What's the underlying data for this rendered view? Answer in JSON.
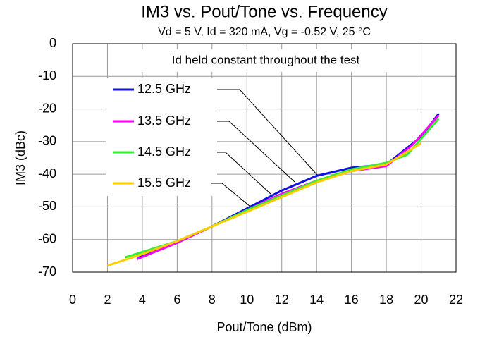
{
  "chart_data": {
    "type": "line",
    "title": "IM3 vs. Pout/Tone vs. Frequency",
    "subtitle": "Vd = 5 V, Id = 320 mA, Vg = -0.52 V, 25 °C",
    "annotation": "Id held constant throughout the test",
    "x_label": "Pout/Tone (dBm)",
    "y_label": "IM3 (dBc)",
    "xlim": [
      0,
      22
    ],
    "xticks": [
      0,
      2,
      4,
      6,
      8,
      10,
      12,
      14,
      16,
      18,
      20,
      22
    ],
    "ylim": [
      -70,
      0
    ],
    "yticks": [
      -70,
      -60,
      -50,
      -40,
      -30,
      -20,
      -10,
      0
    ],
    "grid": true,
    "series": [
      {
        "name": "12.5 GHz",
        "color": "#1010e0",
        "x": [
          3.7,
          6,
          8,
          10,
          12,
          14,
          16,
          18,
          20,
          21
        ],
        "values": [
          -65.5,
          -61,
          -56,
          -50.5,
          -45,
          -40.5,
          -38,
          -37,
          -28.5,
          -21.5
        ]
      },
      {
        "name": "13.5 GHz",
        "color": "#ff00ff",
        "x": [
          3.7,
          6,
          8,
          10,
          12,
          14,
          16,
          18,
          19.5,
          21
        ],
        "values": [
          -66,
          -61,
          -56,
          -51,
          -46,
          -42,
          -39,
          -37.5,
          -31,
          -22
        ]
      },
      {
        "name": "14.5 GHz",
        "color": "#33ee33",
        "x": [
          3,
          6,
          8,
          10,
          12,
          14,
          16,
          18,
          19.2,
          21
        ],
        "values": [
          -65.5,
          -60.5,
          -56,
          -51,
          -46.5,
          -42,
          -38.5,
          -36.5,
          -34,
          -23
        ]
      },
      {
        "name": "15.5 GHz",
        "color": "#ffcc00",
        "x": [
          2,
          4,
          6,
          8,
          10,
          12,
          14,
          16,
          18,
          20
        ],
        "values": [
          -68,
          -64.5,
          -60.5,
          -56,
          -51.5,
          -47,
          -42.5,
          -39,
          -37,
          -30.5
        ]
      }
    ]
  }
}
